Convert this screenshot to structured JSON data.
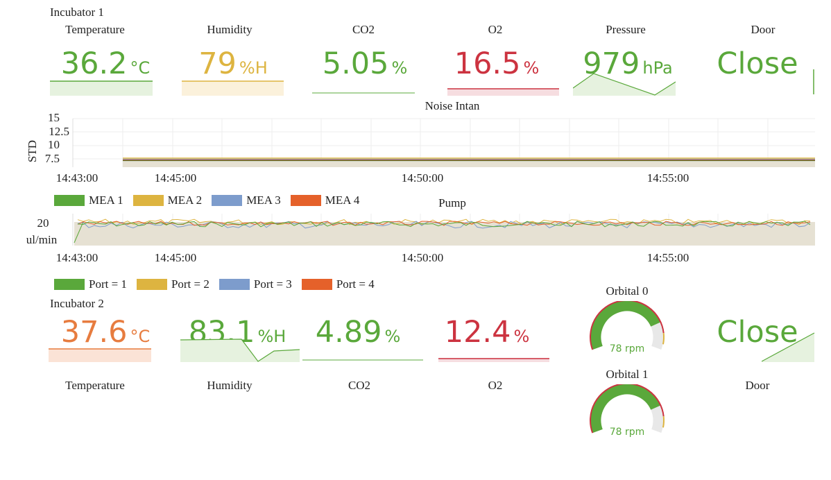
{
  "colors": {
    "green": "#5aa83b",
    "yellow": "#ddb440",
    "blue": "#7d9ccc",
    "orange": "#e5612a",
    "red": "#cc3340",
    "temp_orange": "#e77c3f"
  },
  "incubator1": {
    "title": "Incubator 1",
    "labels": [
      "Temperature",
      "Humidity",
      "CO2",
      "O2",
      "Pressure",
      "Door"
    ],
    "temperature": {
      "value": "36.2",
      "unit": "°C"
    },
    "humidity": {
      "value": "79",
      "unit": "%H"
    },
    "co2": {
      "value": "5.05",
      "unit": "%"
    },
    "o2": {
      "value": "16.5",
      "unit": "%"
    },
    "pressure": {
      "value": "979",
      "unit": "hPa"
    },
    "door": {
      "value": "Close"
    }
  },
  "noise_chart": {
    "title": "Noise Intan",
    "ylabel": "STD",
    "yticks": [
      "15",
      "12.5",
      "10",
      "7.5"
    ],
    "xticks": [
      "14:43:00",
      "14:45:00",
      "14:50:00",
      "14:55:00"
    ],
    "legend": [
      "MEA 1",
      "MEA 2",
      "MEA 3",
      "MEA 4"
    ]
  },
  "pump_chart": {
    "title": "Pump",
    "ylabel_value": "20",
    "ylabel_unit": "ul/min",
    "xticks": [
      "14:43:00",
      "14:45:00",
      "14:50:00",
      "14:55:00"
    ],
    "legend": [
      "Port = 1",
      "Port = 2",
      "Port = 3",
      "Port = 4"
    ]
  },
  "incubator2": {
    "title": "Incubator 2",
    "labels": [
      "Temperature",
      "Humidity",
      "CO2",
      "O2",
      "Door"
    ],
    "temperature": {
      "value": "37.6",
      "unit": "°C"
    },
    "humidity": {
      "value": "83.1",
      "unit": "%H"
    },
    "co2": {
      "value": "4.89",
      "unit": "%"
    },
    "o2": {
      "value": "12.4",
      "unit": "%"
    },
    "door": {
      "value": "Close"
    }
  },
  "orbitals": [
    {
      "title": "Orbital 0",
      "value": "78 rpm",
      "fraction": 0.8
    },
    {
      "title": "Orbital 1",
      "value": "78 rpm",
      "fraction": 0.8
    }
  ]
}
